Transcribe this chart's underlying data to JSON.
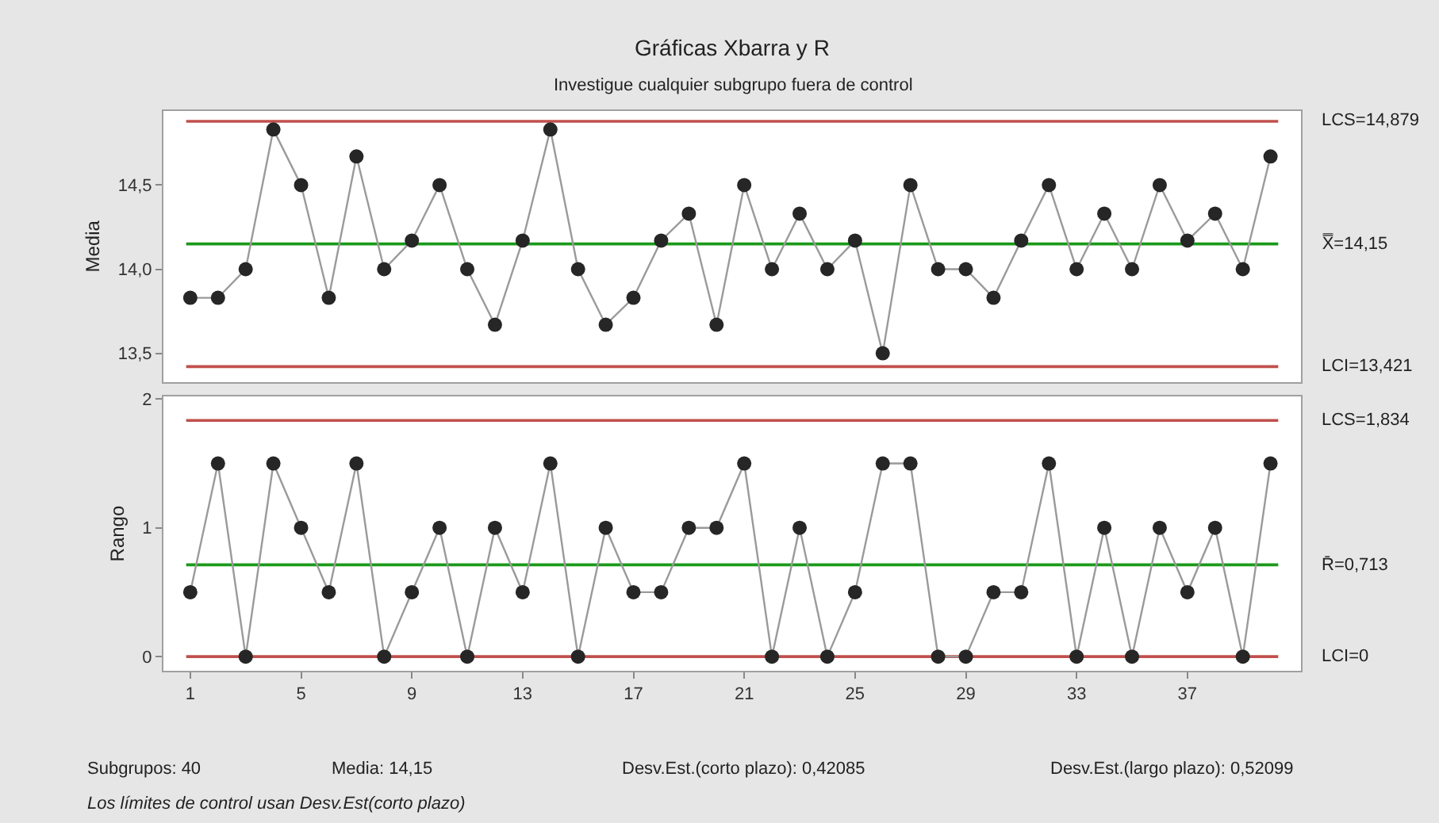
{
  "chart_data": [
    {
      "type": "line",
      "title": "Gráficas Xbarra y R",
      "subtitle": "Investigue cualquier subgrupo fuera de control",
      "ylabel": "Media",
      "x": [
        1,
        2,
        3,
        4,
        5,
        6,
        7,
        8,
        9,
        10,
        11,
        12,
        13,
        14,
        15,
        16,
        17,
        18,
        19,
        20,
        21,
        22,
        23,
        24,
        25,
        26,
        27,
        28,
        29,
        30,
        31,
        32,
        33,
        34,
        35,
        36,
        37,
        38,
        39,
        40
      ],
      "series": [
        {
          "color": "#262626",
          "values": [
            13.83,
            13.83,
            14.0,
            14.83,
            14.5,
            13.83,
            14.67,
            14.0,
            14.17,
            14.5,
            14.0,
            13.67,
            14.17,
            14.83,
            14.0,
            13.67,
            13.83,
            14.17,
            14.33,
            13.67,
            14.5,
            14.0,
            14.33,
            14.0,
            14.17,
            13.5,
            14.5,
            14.0,
            14.0,
            13.83,
            14.17,
            14.5,
            14.0,
            14.33,
            14.0,
            14.5,
            14.17,
            14.33,
            14.0,
            14.67
          ]
        }
      ],
      "marker": "circle",
      "line_style": "solid",
      "grid": false,
      "tick_labels": "y",
      "xlim": [
        0.03,
        41.1
      ],
      "ylim": [
        13.33,
        14.94
      ],
      "yticks": [
        {
          "value": 13.5,
          "label": "13,5"
        },
        {
          "value": 14.0,
          "label": "14,0"
        },
        {
          "value": 14.5,
          "label": "14,5"
        }
      ],
      "ref_lines": [
        {
          "axis": "y",
          "value": 14.879,
          "label": "LCS=14,879",
          "color": "#c0504d"
        },
        {
          "axis": "y",
          "value": 14.15,
          "label": "X̿=14,15",
          "color": "#1a9a1a"
        },
        {
          "axis": "y",
          "value": 13.421,
          "label": "LCI=13,421",
          "color": "#c0504d"
        }
      ]
    },
    {
      "type": "line",
      "ylabel": "Rango",
      "x": [
        1,
        2,
        3,
        4,
        5,
        6,
        7,
        8,
        9,
        10,
        11,
        12,
        13,
        14,
        15,
        16,
        17,
        18,
        19,
        20,
        21,
        22,
        23,
        24,
        25,
        26,
        27,
        28,
        29,
        30,
        31,
        32,
        33,
        34,
        35,
        36,
        37,
        38,
        39,
        40
      ],
      "series": [
        {
          "color": "#262626",
          "values": [
            0.5,
            1.5,
            0,
            1.5,
            1,
            0.5,
            1.5,
            0,
            0.5,
            1,
            0,
            1,
            0.5,
            1.5,
            0,
            1,
            0.5,
            0.5,
            1,
            1,
            1.5,
            0,
            1,
            0,
            0.5,
            1.5,
            1.5,
            0,
            0,
            0.5,
            0.5,
            1.5,
            0,
            1,
            0,
            1,
            0.5,
            1,
            0,
            1.5
          ]
        }
      ],
      "marker": "circle",
      "line_style": "solid",
      "grid": false,
      "xlim": [
        0.03,
        41.1
      ],
      "ylim": [
        -0.11,
        2.02
      ],
      "xticks": [
        1,
        5,
        9,
        13,
        17,
        21,
        25,
        29,
        33,
        37
      ],
      "yticks": [
        0,
        1,
        2
      ],
      "ref_lines": [
        {
          "axis": "y",
          "value": 1.834,
          "label": "LCS=1,834",
          "color": "#c0504d"
        },
        {
          "axis": "y",
          "value": 0.713,
          "label": "R̄=0,713",
          "color": "#1a9a1a"
        },
        {
          "axis": "y",
          "value": 0,
          "label": "LCI=0",
          "color": "#c0504d"
        }
      ],
      "annotations": [
        "Subgrupos: 40",
        "Media: 14,15",
        "Desv.Est.(corto plazo): 0,42085",
        "Desv.Est.(largo plazo): 0,52099",
        "Los límites de control usan Desv.Est(corto plazo)"
      ]
    }
  ]
}
